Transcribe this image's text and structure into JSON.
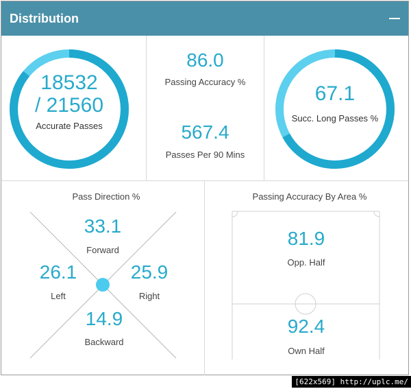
{
  "header": {
    "title": "Distribution",
    "collapse_icon": "minus-icon"
  },
  "accurate_passes": {
    "value": "18532",
    "total": "/ 21560",
    "label": "Accurate Passes",
    "fraction": 0.8595
  },
  "passing_accuracy": {
    "value": "86.0",
    "label": "Passing Accuracy %"
  },
  "passes_per_90": {
    "value": "567.4",
    "label": "Passes Per 90 Mins"
  },
  "long_passes": {
    "value": "67.1",
    "label": "Succ. Long Passes %",
    "fraction": 0.671
  },
  "pass_direction": {
    "title": "Pass Direction %",
    "forward": {
      "value": "33.1",
      "label": "Forward"
    },
    "left": {
      "value": "26.1",
      "label": "Left"
    },
    "right": {
      "value": "25.9",
      "label": "Right"
    },
    "backward": {
      "value": "14.9",
      "label": "Backward"
    }
  },
  "accuracy_by_area": {
    "title": "Passing Accuracy By Area %",
    "opp_half": {
      "value": "81.9",
      "label": "Opp. Half"
    },
    "own_half": {
      "value": "92.4",
      "label": "Own Half"
    }
  },
  "colors": {
    "accent": "#28aacb",
    "ring_track": "#5cd0ee",
    "ring_fill": "#1fa9cf",
    "header": "#4a90a8"
  },
  "footer": {
    "badge": "[622x569] http://uplc.me/"
  }
}
